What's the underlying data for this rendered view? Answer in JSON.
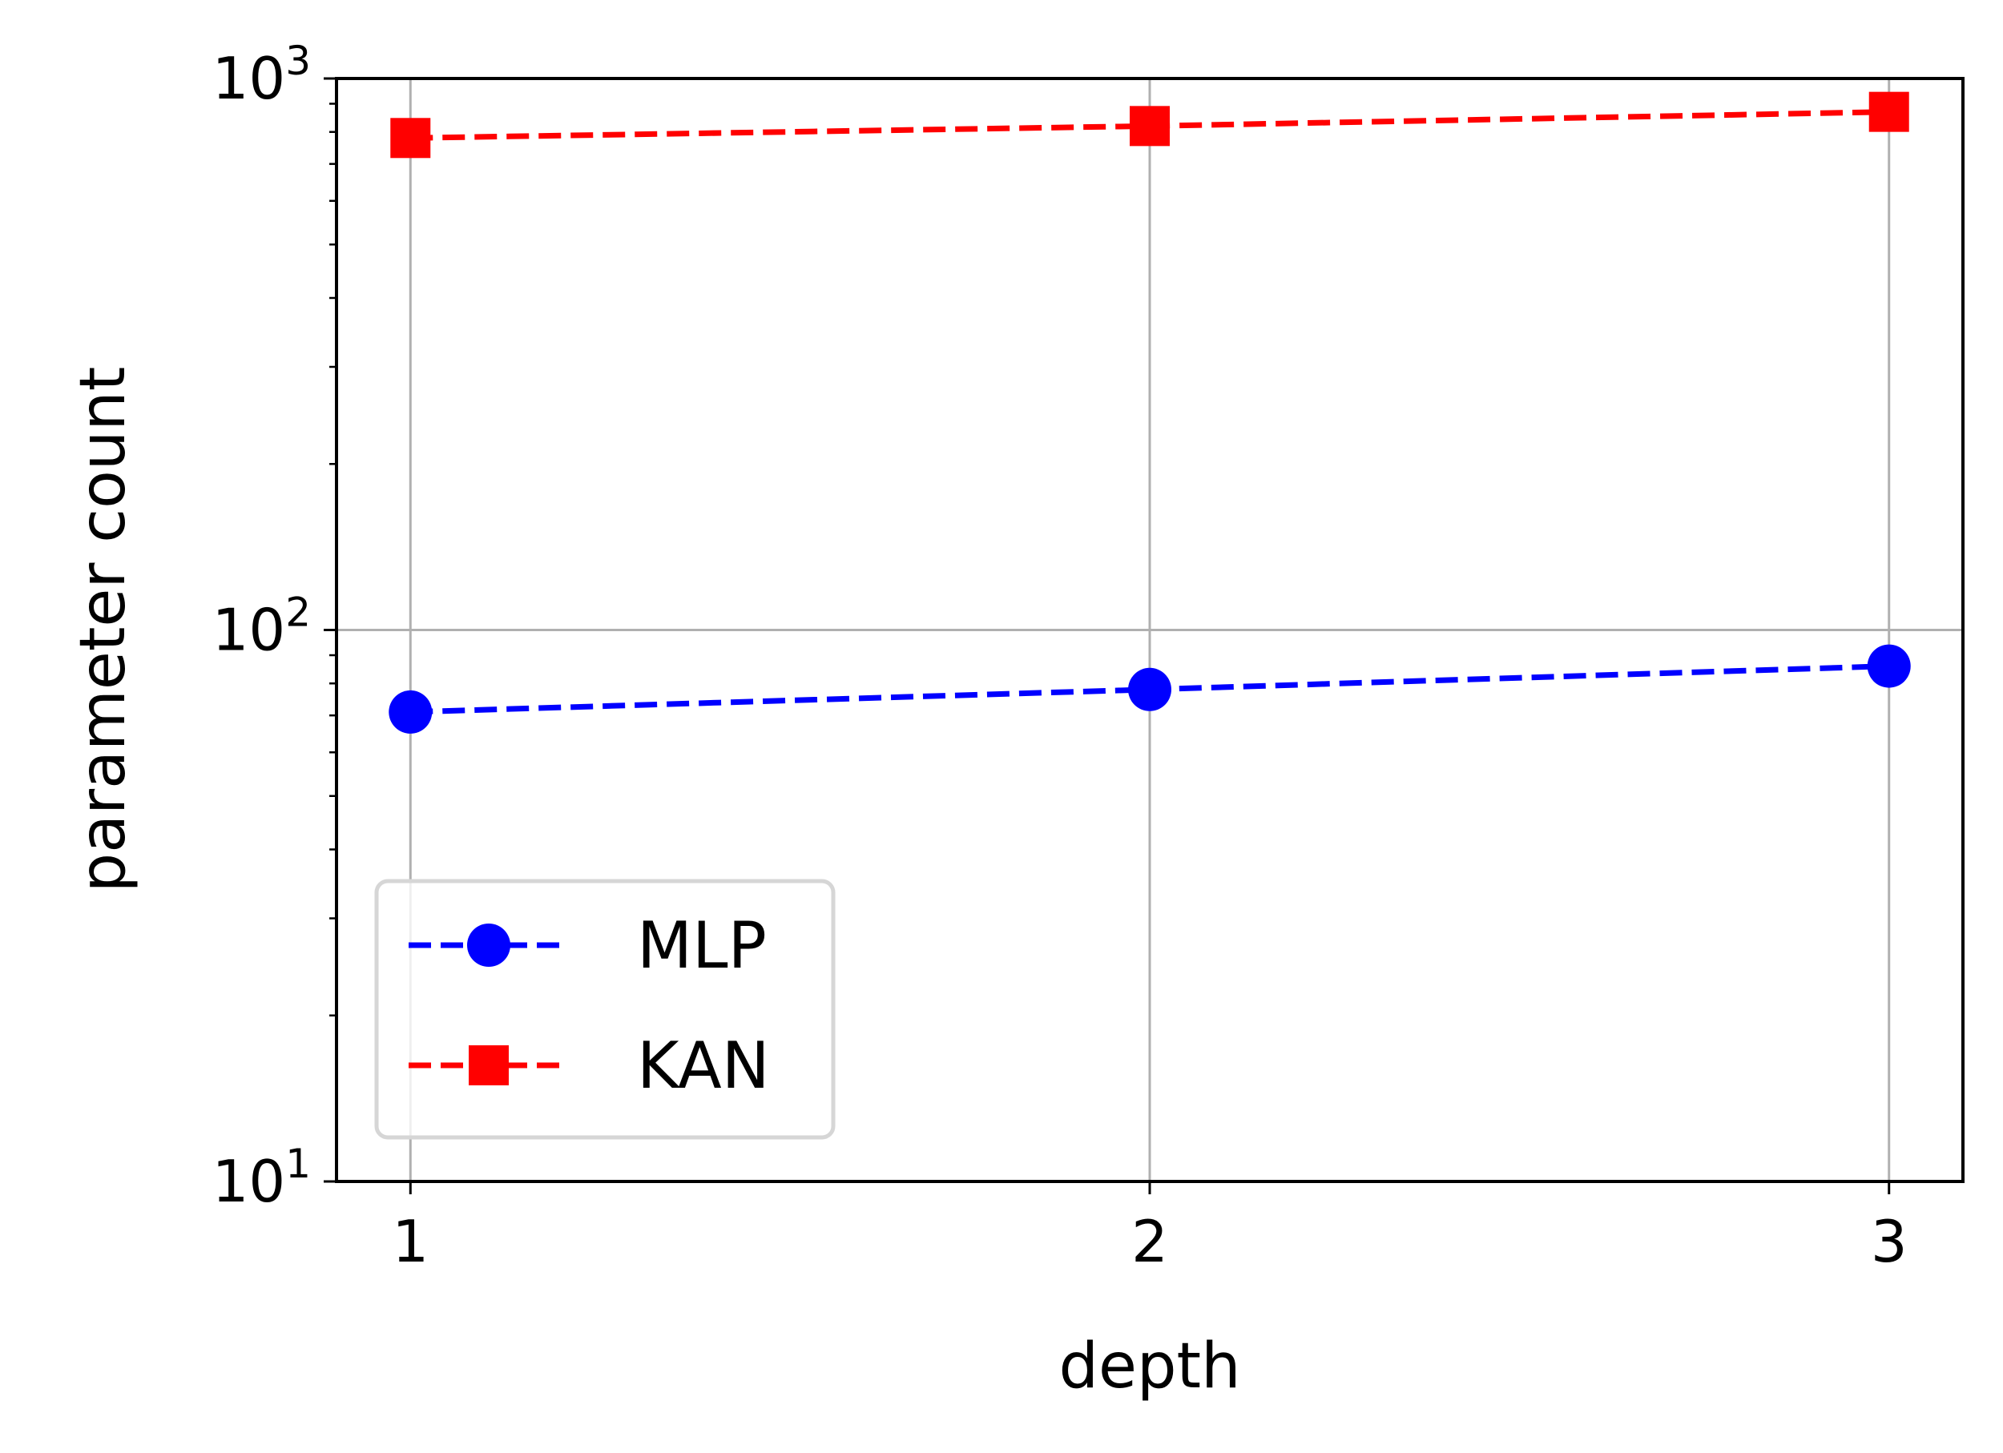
{
  "chart_data": {
    "type": "line",
    "xlabel": "depth",
    "ylabel": "parameter count",
    "x": [
      1,
      2,
      3
    ],
    "xticks": [
      "1",
      "2",
      "3"
    ],
    "xlim": [
      0.9,
      3.1
    ],
    "yscale": "log",
    "ylim": [
      10,
      1000
    ],
    "yticks": [
      {
        "value": 10,
        "base": "10",
        "exp": "1"
      },
      {
        "value": 100,
        "base": "10",
        "exp": "2"
      },
      {
        "value": 1000,
        "base": "10",
        "exp": "3"
      }
    ],
    "grid": true,
    "legend_position": "lower-left",
    "series": [
      {
        "name": "MLP",
        "values": [
          71,
          78,
          86
        ],
        "color": "#0000ff",
        "marker": "circle",
        "linestyle": "dashed"
      },
      {
        "name": "KAN",
        "values": [
          780,
          820,
          870
        ],
        "color": "#ff0000",
        "marker": "square",
        "linestyle": "dashed"
      }
    ]
  }
}
